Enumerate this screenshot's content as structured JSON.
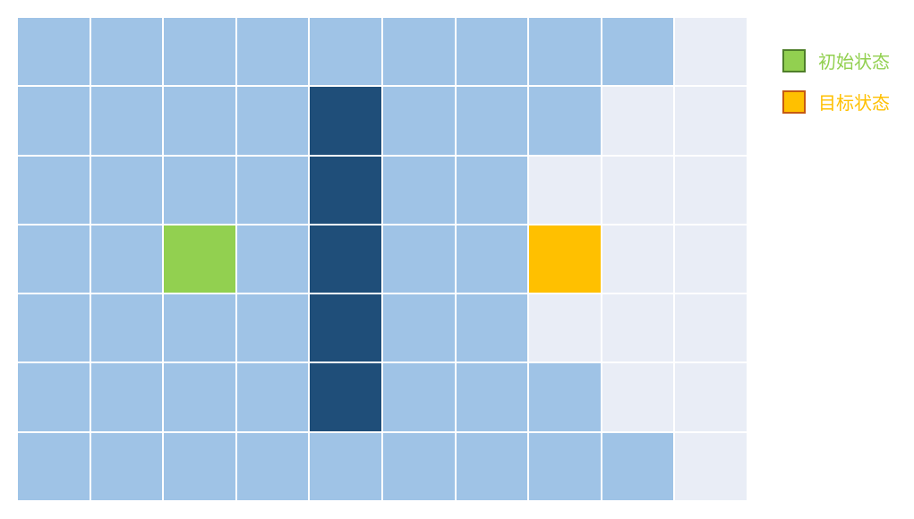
{
  "grid": {
    "rows": 7,
    "cols": 10,
    "cells": [
      [
        "free",
        "free",
        "free",
        "free",
        "free",
        "free",
        "free",
        "free",
        "free",
        "path"
      ],
      [
        "free",
        "free",
        "free",
        "free",
        "wall",
        "free",
        "free",
        "free",
        "path",
        "path"
      ],
      [
        "free",
        "free",
        "free",
        "free",
        "wall",
        "free",
        "free",
        "path",
        "path",
        "path"
      ],
      [
        "free",
        "free",
        "start",
        "free",
        "wall",
        "free",
        "free",
        "goal",
        "path",
        "path"
      ],
      [
        "free",
        "free",
        "free",
        "free",
        "wall",
        "free",
        "free",
        "path",
        "path",
        "path"
      ],
      [
        "free",
        "free",
        "free",
        "free",
        "wall",
        "free",
        "free",
        "free",
        "path",
        "path"
      ],
      [
        "free",
        "free",
        "free",
        "free",
        "free",
        "free",
        "free",
        "free",
        "free",
        "path"
      ]
    ],
    "colors": {
      "free": "#9fc3e6",
      "wall": "#1f4e79",
      "path": "#e9edf6",
      "start": "#92d050",
      "goal": "#ffc000"
    }
  },
  "legend": [
    {
      "label": "初始状态",
      "fill": "#92d050",
      "border": "#4f7f2a",
      "text_color": "#92d050",
      "icon": "green-square-icon"
    },
    {
      "label": "目标状态",
      "fill": "#ffc000",
      "border": "#c55a11",
      "text_color": "#ffc000",
      "icon": "orange-square-icon"
    }
  ]
}
